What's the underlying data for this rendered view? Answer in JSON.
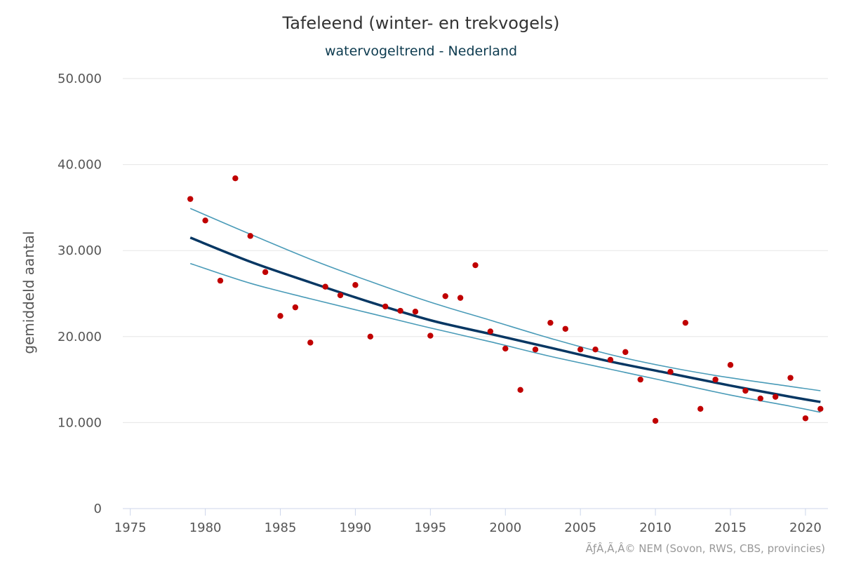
{
  "chart_data": {
    "type": "scatter",
    "title": "Tafeleend (winter- en trekvogels)",
    "subtitle": "watervogeltrend - Nederland",
    "ylabel": "gemiddeld aantal",
    "xlabel": "",
    "credits": "ÃƒÂ‚Ã‚Â© NEM (Sovon, RWS, CBS, provincies)",
    "xlim": [
      1974.5,
      2021.5
    ],
    "ylim": [
      0,
      50000
    ],
    "x_ticks": [
      1975,
      1980,
      1985,
      1990,
      1995,
      2000,
      2005,
      2010,
      2015,
      2020
    ],
    "x_tick_labels": [
      "1975",
      "1980",
      "1985",
      "1990",
      "1995",
      "2000",
      "2005",
      "2010",
      "2015",
      "2020"
    ],
    "y_ticks": [
      0,
      10000,
      20000,
      30000,
      40000,
      50000
    ],
    "y_tick_labels": [
      "0",
      "10.000",
      "20.000",
      "30.000",
      "40.000",
      "50.000"
    ],
    "grid": true,
    "legend": "none",
    "colors": {
      "points": "#c00000",
      "trend": "#073763",
      "confidence": "#4a9bb8"
    },
    "points": {
      "x": [
        1979,
        1980,
        1981,
        1982,
        1983,
        1984,
        1985,
        1986,
        1987,
        1988,
        1989,
        1990,
        1991,
        1992,
        1993,
        1994,
        1995,
        1996,
        1997,
        1998,
        1999,
        2000,
        2001,
        2002,
        2003,
        2004,
        2005,
        2006,
        2007,
        2008,
        2009,
        2010,
        2011,
        2012,
        2013,
        2014,
        2015,
        2016,
        2017,
        2018,
        2019,
        2020,
        2021
      ],
      "y": [
        36000,
        33500,
        26500,
        38400,
        31700,
        27500,
        22400,
        23400,
        19300,
        25800,
        24800,
        26000,
        20000,
        23500,
        23000,
        22900,
        20100,
        24700,
        24500,
        28300,
        20600,
        18600,
        13800,
        18500,
        21600,
        20900,
        18500,
        18500,
        17300,
        18200,
        15000,
        10200,
        15900,
        21600,
        11600,
        15000,
        16700,
        13700,
        12800,
        13000,
        15200,
        10500,
        11600
      ]
    },
    "series": [
      {
        "x": [
          1979,
          1983,
          1987,
          1991,
          1995,
          1999,
          2003,
          2007,
          2011,
          2015,
          2019,
          2021
        ],
        "values": [
          31500,
          28700,
          26300,
          24000,
          21900,
          20300,
          18700,
          17100,
          15700,
          14300,
          13000,
          12400
        ]
      },
      {
        "x": [
          1979,
          1983,
          1987,
          1991,
          1995,
          1999,
          2003,
          2007,
          2011,
          2015,
          2019,
          2021
        ],
        "values": [
          34900,
          31900,
          29000,
          26400,
          24000,
          21900,
          19800,
          17900,
          16400,
          15200,
          14200,
          13700
        ]
      },
      {
        "x": [
          1979,
          1983,
          1987,
          1991,
          1995,
          1999,
          2003,
          2007,
          2011,
          2015,
          2019,
          2021
        ],
        "values": [
          28500,
          26200,
          24400,
          22700,
          21000,
          19400,
          17700,
          16200,
          14700,
          13200,
          11900,
          11200
        ]
      }
    ]
  }
}
